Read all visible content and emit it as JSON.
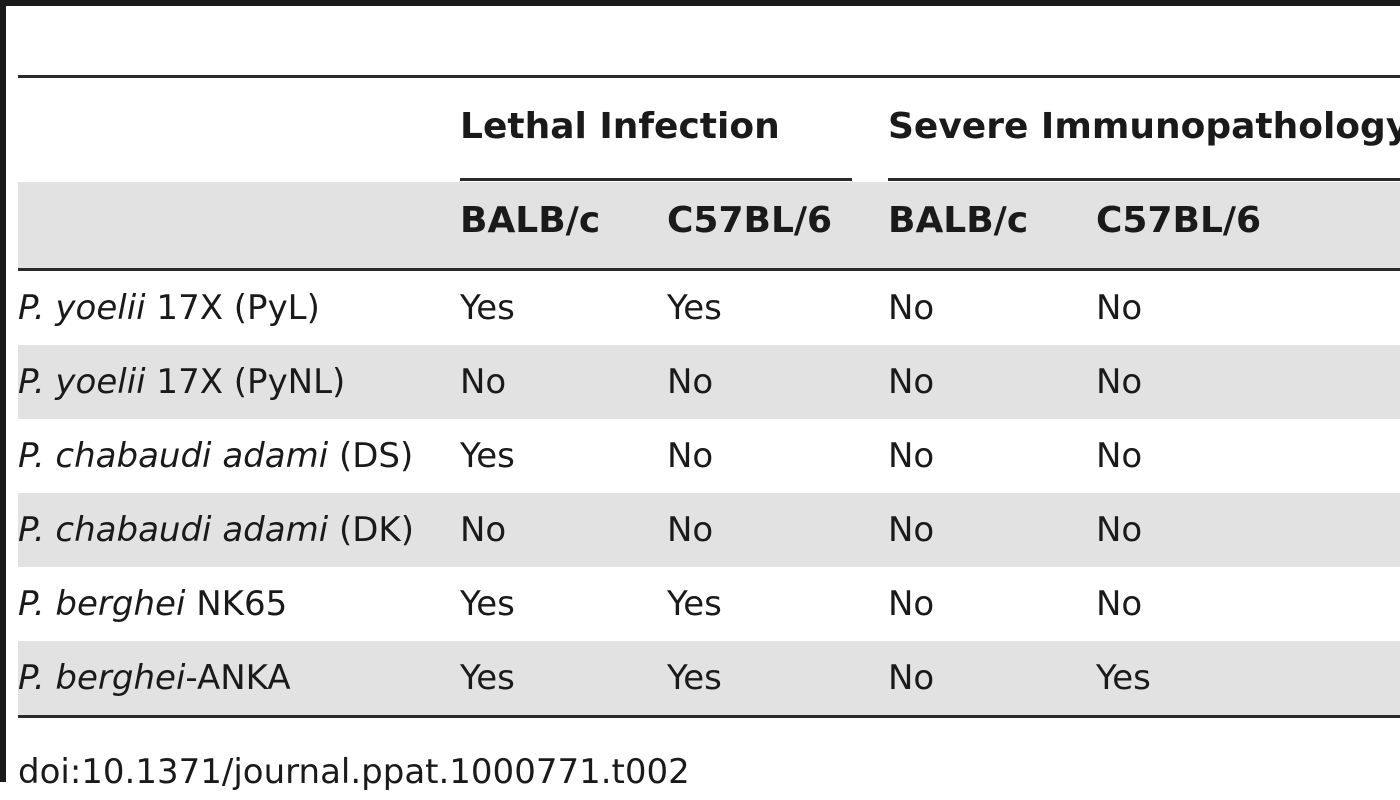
{
  "table": {
    "groups": [
      {
        "label": "Lethal Infection"
      },
      {
        "label": "Severe Immunopathology"
      }
    ],
    "strains": [
      "BALB/c",
      "C57BL/6",
      "BALB/c",
      "C57BL/6"
    ],
    "rows": [
      {
        "species": "P. yoelii",
        "suffix": " 17X (PyL)",
        "values": [
          "Yes",
          "Yes",
          "No",
          "No"
        ]
      },
      {
        "species": "P. yoelii",
        "suffix": " 17X (PyNL)",
        "values": [
          "No",
          "No",
          "No",
          "No"
        ]
      },
      {
        "species": "P. chabaudi adami",
        "suffix": " (DS)",
        "values": [
          "Yes",
          "No",
          "No",
          "No"
        ]
      },
      {
        "species": "P. chabaudi adami",
        "suffix": " (DK)",
        "values": [
          "No",
          "No",
          "No",
          "No"
        ]
      },
      {
        "species": "P. berghei",
        "suffix": " NK65",
        "values": [
          "Yes",
          "Yes",
          "No",
          "No"
        ]
      },
      {
        "species": "P. berghei",
        "suffix": "-ANKA",
        "values": [
          "Yes",
          "Yes",
          "No",
          "Yes"
        ]
      }
    ]
  },
  "footer": {
    "doi": "doi:10.1371/journal.ppat.1000771.t002"
  }
}
